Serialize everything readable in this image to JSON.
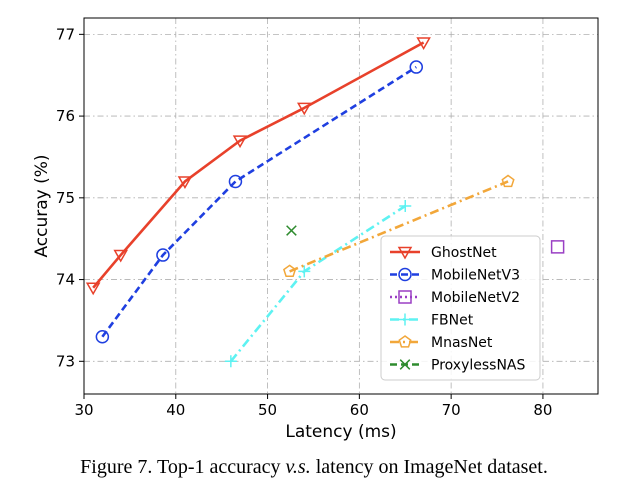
{
  "figure": {
    "caption_prefix": "Figure 7. Top-1 accuracy ",
    "caption_vs": "v.s.",
    "caption_suffix": " latency on ImageNet dataset."
  },
  "chart_data": {
    "type": "line",
    "title": "",
    "xlabel": "Latency (ms)",
    "ylabel": "Accuray (%)",
    "xlim": [
      30,
      86
    ],
    "ylim": [
      72.6,
      77.2
    ],
    "xticks": [
      30,
      40,
      50,
      60,
      70,
      80
    ],
    "yticks": [
      73,
      74,
      75,
      76,
      77
    ],
    "grid": true,
    "legend_position": "lower-right",
    "series": [
      {
        "name": "GhostNet",
        "color": "#e8412b",
        "marker": "triangle-down",
        "line": "solid",
        "points": [
          [
            31,
            73.9
          ],
          [
            34,
            74.3
          ],
          [
            41,
            75.2
          ],
          [
            47,
            75.7
          ],
          [
            54,
            76.1
          ],
          [
            67,
            76.9
          ]
        ]
      },
      {
        "name": "MobileNetV3",
        "color": "#1f3fe0",
        "marker": "circle",
        "line": "dashed",
        "points": [
          [
            32,
            73.3
          ],
          [
            38.6,
            74.3
          ],
          [
            46.5,
            75.2
          ],
          [
            66.2,
            76.6
          ]
        ]
      },
      {
        "name": "MobileNetV2",
        "color": "#9a3fc4",
        "marker": "square",
        "line": "dotted",
        "points": [
          [
            81.6,
            74.4
          ]
        ]
      },
      {
        "name": "FBNet",
        "color": "#5ef2f2",
        "marker": "plus",
        "line": "dashdot",
        "points": [
          [
            46,
            73.0
          ],
          [
            54,
            74.1
          ],
          [
            65,
            74.9
          ]
        ]
      },
      {
        "name": "MnasNet",
        "color": "#f2a73a",
        "marker": "pentagon",
        "line": "dashdot",
        "points": [
          [
            52.4,
            74.1
          ],
          [
            76.2,
            75.2
          ]
        ]
      },
      {
        "name": "ProxylessNAS",
        "color": "#2e8b2e",
        "marker": "x",
        "line": "dashed",
        "points": [
          [
            52.6,
            74.6
          ]
        ]
      }
    ]
  }
}
